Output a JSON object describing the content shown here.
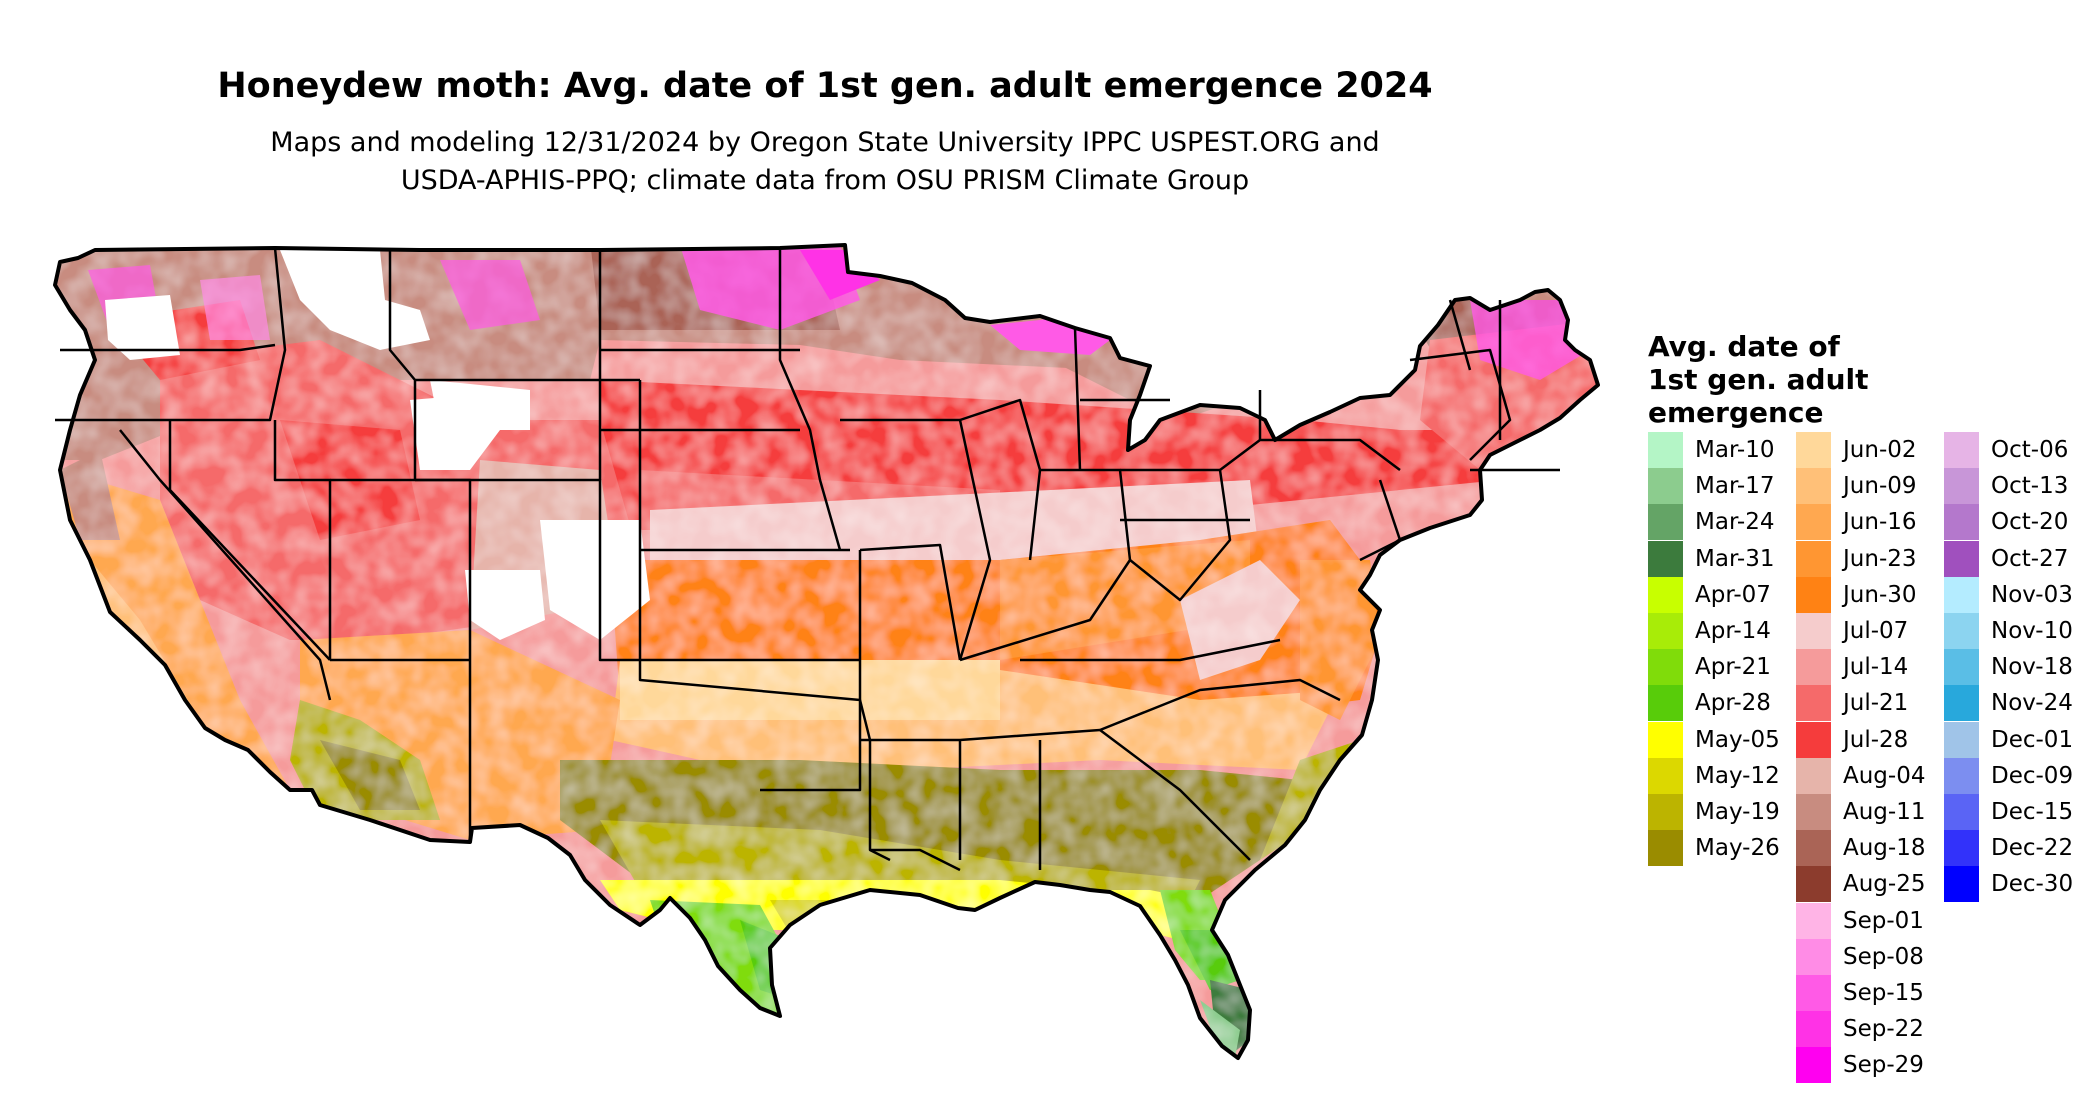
{
  "title": "Honeydew moth: Avg. date of 1st gen. adult emergence 2024",
  "subtitle_line1": "Maps and modeling 12/31/2024 by Oregon State University IPPC USPEST.ORG and",
  "subtitle_line2": "USDA-APHIS-PPQ; climate data from OSU PRISM Climate Group",
  "legend": {
    "title_line1": "Avg. date of",
    "title_line2": "1st gen. adult",
    "title_line3": "emergence",
    "items": [
      {
        "label": "Mar-10",
        "color": "#b4f5c6"
      },
      {
        "label": "Mar-17",
        "color": "#8ccc8e"
      },
      {
        "label": "Mar-24",
        "color": "#64a466"
      },
      {
        "label": "Mar-31",
        "color": "#3c7b3d"
      },
      {
        "label": "Apr-07",
        "color": "#c8ff00"
      },
      {
        "label": "Apr-14",
        "color": "#a8ec08"
      },
      {
        "label": "Apr-21",
        "color": "#80dc0a"
      },
      {
        "label": "Apr-28",
        "color": "#58cc0a"
      },
      {
        "label": "May-05",
        "color": "#ffff00"
      },
      {
        "label": "May-12",
        "color": "#dcd800"
      },
      {
        "label": "May-19",
        "color": "#bcb400"
      },
      {
        "label": "May-26",
        "color": "#9a8c00"
      },
      {
        "label": "Jun-02",
        "color": "#ffd89a"
      },
      {
        "label": "Jun-09",
        "color": "#ffc078"
      },
      {
        "label": "Jun-16",
        "color": "#ffa850"
      },
      {
        "label": "Jun-23",
        "color": "#ff9632"
      },
      {
        "label": "Jun-30",
        "color": "#ff8214"
      },
      {
        "label": "Jul-07",
        "color": "#f5cccc"
      },
      {
        "label": "Jul-14",
        "color": "#f59b9b"
      },
      {
        "label": "Jul-21",
        "color": "#f56a6a"
      },
      {
        "label": "Jul-28",
        "color": "#f53c3c"
      },
      {
        "label": "Aug-04",
        "color": "#e6b4aa"
      },
      {
        "label": "Aug-11",
        "color": "#c88c80"
      },
      {
        "label": "Aug-18",
        "color": "#aa6456"
      },
      {
        "label": "Aug-25",
        "color": "#8c3c2d"
      },
      {
        "label": "Sep-01",
        "color": "#ffb4e6"
      },
      {
        "label": "Sep-08",
        "color": "#ff8ce6"
      },
      {
        "label": "Sep-15",
        "color": "#ff5ae6"
      },
      {
        "label": "Sep-22",
        "color": "#ff32e6"
      },
      {
        "label": "Sep-29",
        "color": "#ff00f0"
      },
      {
        "label": "Oct-06",
        "color": "#e6b4e6"
      },
      {
        "label": "Oct-13",
        "color": "#c896d8"
      },
      {
        "label": "Oct-20",
        "color": "#b478cc"
      },
      {
        "label": "Oct-27",
        "color": "#a050be"
      },
      {
        "label": "Nov-03",
        "color": "#b4ecff"
      },
      {
        "label": "Nov-10",
        "color": "#8cd4f0"
      },
      {
        "label": "Nov-18",
        "color": "#5abee6"
      },
      {
        "label": "Nov-24",
        "color": "#28a8dc"
      },
      {
        "label": "Dec-01",
        "color": "#a0c4e8"
      },
      {
        "label": "Dec-09",
        "color": "#7c8ef0"
      },
      {
        "label": "Dec-15",
        "color": "#5a64f5"
      },
      {
        "label": "Dec-22",
        "color": "#3232fa"
      },
      {
        "label": "Dec-30",
        "color": "#0000ff"
      }
    ]
  }
}
